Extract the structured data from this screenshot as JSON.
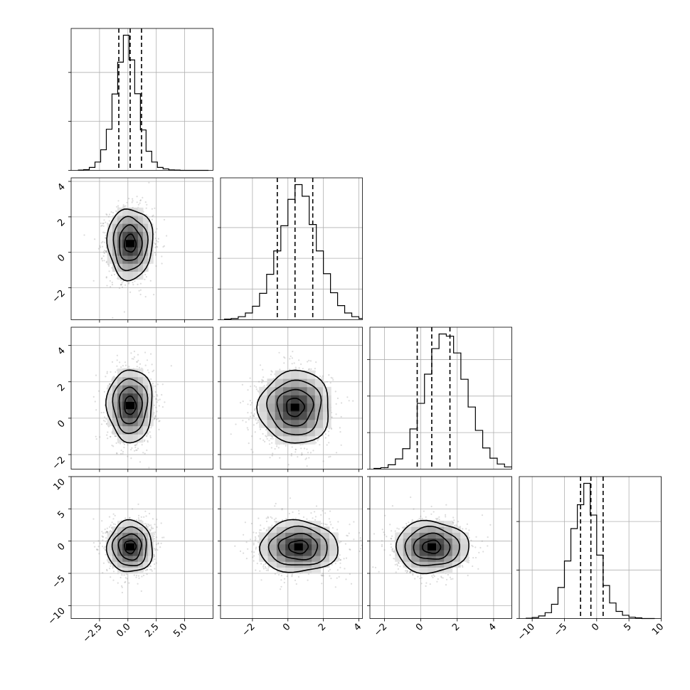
{
  "chart_data": {
    "type": "corner",
    "title": "",
    "n_params": 4,
    "param_labels": [
      "",
      "",
      "",
      ""
    ],
    "axis_ranges": [
      [
        -5.0,
        7.5
      ],
      [
        -3.8,
        4.2
      ],
      [
        -2.8,
        5.0
      ],
      [
        -12.0,
        10.0
      ]
    ],
    "tick_values": [
      [
        -2.5,
        0.0,
        2.5,
        5.0
      ],
      [
        -2,
        0,
        2,
        4
      ],
      [
        -2,
        0,
        2,
        4
      ],
      [
        -10,
        -5,
        0,
        5,
        10
      ]
    ],
    "tick_labels": [
      [
        "−2.5",
        "0.0",
        "2.5",
        "5.0"
      ],
      [
        "−2",
        "0",
        "2",
        "4"
      ],
      [
        "−2",
        "0",
        "2",
        "4"
      ],
      [
        "−10",
        "−5",
        "0",
        "5",
        "10"
      ]
    ],
    "y_tick_values": {
      "1": [
        -2,
        0,
        2,
        4
      ],
      "2": [
        -2,
        0,
        2,
        4
      ],
      "3": [
        -10,
        -5,
        0,
        5,
        10
      ]
    },
    "y_tick_labels": {
      "1": [
        "−2",
        "0",
        "2",
        "4"
      ],
      "2": [
        "−2",
        "0",
        "2",
        "4"
      ],
      "3": [
        "−10",
        "−5",
        "0",
        "5",
        "10"
      ]
    },
    "histograms": [
      {
        "param": 0,
        "bin_start": -4.4,
        "bin_width": 0.5,
        "counts": [
          1,
          3,
          12,
          34,
          84,
          168,
          312,
          442,
          552,
          451,
          313,
          165,
          78,
          34,
          12,
          6,
          2,
          1,
          0,
          0,
          0,
          0,
          0
        ],
        "quantiles": [
          -0.8,
          0.2,
          1.2
        ],
        "y_gridlines": [
          200,
          400
        ]
      },
      {
        "param": 1,
        "bin_start": -3.6,
        "bin_width": 0.4,
        "counts": [
          2,
          4,
          10,
          22,
          44,
          86,
          148,
          224,
          306,
          392,
          440,
          402,
          310,
          224,
          150,
          88,
          46,
          22,
          10,
          4
        ],
        "quantiles": [
          -0.6,
          0.4,
          1.4
        ],
        "y_gridlines": [
          100,
          200,
          300
        ]
      },
      {
        "param": 2,
        "bin_start": -2.6,
        "bin_width": 0.4,
        "counts": [
          2,
          4,
          12,
          28,
          56,
          110,
          180,
          260,
          330,
          370,
          364,
          318,
          246,
          170,
          106,
          58,
          30,
          14,
          6,
          3
        ],
        "quantiles": [
          -0.2,
          0.6,
          1.6
        ],
        "y_gridlines": [
          100,
          200,
          300
        ]
      },
      {
        "param": 3,
        "bin_start": -11.0,
        "bin_width": 1.0,
        "counts": [
          1,
          3,
          8,
          18,
          44,
          96,
          178,
          278,
          352,
          418,
          320,
          196,
          102,
          48,
          22,
          10,
          4,
          2,
          0,
          0
        ],
        "quantiles": [
          -2.5,
          -0.9,
          1.0
        ],
        "y_gridlines": [
          150,
          300
        ]
      }
    ],
    "pairs": [
      {
        "x_param": 0,
        "y_param": 1,
        "center": [
          0.2,
          0.5
        ],
        "sigma": [
          1.0,
          1.0
        ]
      },
      {
        "x_param": 0,
        "y_param": 2,
        "center": [
          0.2,
          0.7
        ],
        "sigma": [
          1.0,
          1.0
        ]
      },
      {
        "x_param": 1,
        "y_param": 2,
        "center": [
          0.4,
          0.6
        ],
        "sigma": [
          1.0,
          1.0
        ]
      },
      {
        "x_param": 0,
        "y_param": 3,
        "center": [
          0.2,
          -0.9
        ],
        "sigma": [
          1.0,
          2.0
        ]
      },
      {
        "x_param": 1,
        "y_param": 3,
        "center": [
          0.6,
          -0.9
        ],
        "sigma": [
          1.1,
          2.0
        ]
      },
      {
        "x_param": 2,
        "y_param": 3,
        "center": [
          0.6,
          -0.9
        ],
        "sigma": [
          1.0,
          2.0
        ]
      }
    ],
    "contour_levels_sigma": [
      0.5,
      1.0,
      1.5,
      2.0
    ],
    "grid": true,
    "colors": {
      "line": "#000000",
      "points": "#808080",
      "grid": "#b0b0b0"
    }
  }
}
